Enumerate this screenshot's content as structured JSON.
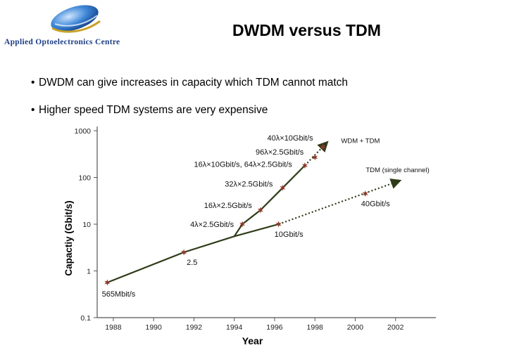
{
  "logo": {
    "org_name": "Applied Optoelectronics Centre"
  },
  "slide": {
    "title": "DWDM versus TDM",
    "bullets": [
      "DWDM can give increases in capacity which TDM cannot match",
      "Higher speed TDM systems are very expensive"
    ]
  },
  "colors": {
    "curve": "#2e3b18",
    "marker": "#8b3a2a",
    "logo_text": "#1d3f86",
    "logo_blue": "#2b6fc0"
  },
  "chart_data": {
    "type": "line",
    "xlabel": "Year",
    "ylabel": "Capactiy (Gbit/s)",
    "yscale": "log",
    "xlim": [
      1987.2,
      2004
    ],
    "ylim": [
      0.1,
      1000
    ],
    "x_ticks": [
      "1988",
      "1990",
      "1992",
      "1994",
      "1996",
      "1998",
      "2000",
      "2002"
    ],
    "y_ticks": [
      "0.1",
      "1",
      "10",
      "100",
      "1000"
    ],
    "series": [
      {
        "name": "WDM + TDM",
        "solid": [
          [
            1987.7,
            0.565
          ],
          [
            1991.5,
            2.5
          ],
          [
            1994,
            5.5
          ],
          [
            1994.4,
            10
          ],
          [
            1995.3,
            20
          ],
          [
            1996.4,
            60
          ],
          [
            1997.5,
            180
          ]
        ],
        "dotted": [
          [
            1997.5,
            180
          ],
          [
            1998.6,
            560
          ]
        ],
        "markers": [
          {
            "x": 1994.4,
            "y": 10,
            "label": "4λ×2.5Gbit/s"
          },
          {
            "x": 1995.3,
            "y": 20,
            "label": "16λ×2.5Gbit/s"
          },
          {
            "x": 1996.4,
            "y": 60,
            "label": "32λ×2.5Gbit/s"
          },
          {
            "x": 1997.5,
            "y": 180,
            "label": "16λ×10Gbit/s, 64λ×2.5Gbit/s"
          },
          {
            "x": 1998.0,
            "y": 270,
            "label": "96λ×2.5Gbit/s"
          },
          {
            "x": 1998.4,
            "y": 450,
            "label": "40λ×10Gbit/s"
          }
        ]
      },
      {
        "name": "TDM (single channel)",
        "solid": [
          [
            1994,
            5.5
          ],
          [
            1996.2,
            10
          ]
        ],
        "dotted": [
          [
            1996.2,
            10
          ],
          [
            2002.2,
            85
          ]
        ],
        "markers": [
          {
            "x": 1996.2,
            "y": 10,
            "label": "10Gbit/s"
          },
          {
            "x": 2000.5,
            "y": 45,
            "label": "40Gbit/s"
          }
        ]
      }
    ],
    "shared_markers": [
      {
        "x": 1987.7,
        "y": 0.565,
        "label": "565Mbit/s"
      },
      {
        "x": 1991.5,
        "y": 2.5,
        "label": "2.5"
      }
    ],
    "legend": "inline labels at arrow tips"
  }
}
